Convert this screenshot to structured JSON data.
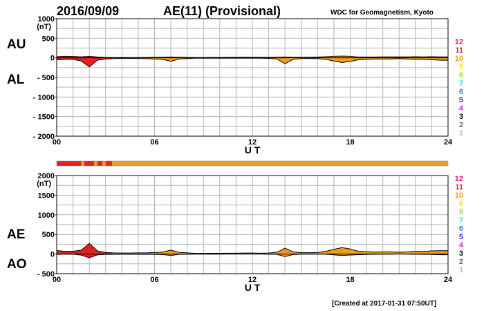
{
  "header": {
    "date": "2016/09/09",
    "title": "AE(11) (Provisional)",
    "source": "WDC for Geomagnetism, Kyoto"
  },
  "footer": {
    "created": "[Created at 2017-01-31 07:50UT]"
  },
  "station_count_legend": {
    "labels": [
      "12",
      "11",
      "10",
      "9",
      "8",
      "7",
      "6",
      "5",
      "4",
      "3",
      "2",
      "1"
    ],
    "colors": [
      "#e8177f",
      "#e5201e",
      "#f0a21d",
      "#f2ea1c",
      "#a2d92b",
      "#35d4dc",
      "#2a8de0",
      "#2b2bc9",
      "#c42ed1",
      "#111111",
      "#666666",
      "#bfbfbf"
    ]
  },
  "chart_data": [
    {
      "type": "area",
      "panel": "top",
      "y_unit_label": "(nT)",
      "series_labels": [
        "AU",
        "AL"
      ],
      "xlabel": "U T",
      "x_ticks": [
        "00",
        "06",
        "12",
        "18",
        "24"
      ],
      "y_ticks": [
        "1000",
        "500",
        "0",
        "- 500",
        "- 1000",
        "- 1500",
        "- 2000"
      ],
      "xlim": [
        0,
        24
      ],
      "ylim": [
        -2000,
        1000
      ],
      "series": [
        {
          "name": "AU",
          "x": [
            0,
            0.5,
            1,
            1.5,
            2,
            2.5,
            3,
            3.5,
            4,
            4.5,
            5,
            5.5,
            6,
            6.5,
            7,
            7.5,
            8,
            8.5,
            9,
            9.5,
            10,
            10.5,
            11,
            11.5,
            12,
            12.5,
            13,
            13.5,
            14,
            14.5,
            15,
            15.5,
            16,
            16.5,
            17,
            17.5,
            18,
            18.5,
            19,
            19.5,
            20,
            20.5,
            21,
            21.5,
            22,
            22.5,
            23,
            23.5,
            24
          ],
          "values": [
            30,
            40,
            35,
            25,
            40,
            20,
            10,
            8,
            8,
            8,
            8,
            10,
            12,
            15,
            20,
            15,
            10,
            8,
            8,
            10,
            10,
            12,
            12,
            15,
            15,
            12,
            12,
            15,
            20,
            15,
            15,
            15,
            20,
            30,
            40,
            45,
            40,
            20,
            20,
            20,
            25,
            25,
            25,
            25,
            30,
            25,
            30,
            25,
            25
          ]
        },
        {
          "name": "AL",
          "x": [
            0,
            0.5,
            1,
            1.5,
            2,
            2.5,
            3,
            3.5,
            4,
            4.5,
            5,
            5.5,
            6,
            6.5,
            7,
            7.5,
            8,
            8.5,
            9,
            9.5,
            10,
            10.5,
            11,
            11.5,
            12,
            12.5,
            13,
            13.5,
            14,
            14.5,
            15,
            15.5,
            16,
            16.5,
            17,
            17.5,
            18,
            18.5,
            19,
            19.5,
            20,
            20.5,
            21,
            21.5,
            22,
            22.5,
            23,
            23.5,
            24
          ],
          "values": [
            -50,
            -40,
            -40,
            -80,
            -230,
            -60,
            -30,
            -20,
            -15,
            -15,
            -20,
            -20,
            -30,
            -40,
            -90,
            -30,
            -20,
            -10,
            -10,
            -10,
            -10,
            -10,
            -10,
            -10,
            -10,
            -10,
            -15,
            -30,
            -150,
            -40,
            -20,
            -20,
            -20,
            -40,
            -80,
            -120,
            -90,
            -50,
            -40,
            -30,
            -30,
            -30,
            -20,
            -30,
            -40,
            -40,
            -50,
            -60,
            -60
          ]
        }
      ]
    },
    {
      "type": "area",
      "panel": "bottom",
      "y_unit_label": "(nT)",
      "series_labels": [
        "AE",
        "AO"
      ],
      "xlabel": "U T",
      "x_ticks": [
        "00",
        "06",
        "12",
        "18",
        "24"
      ],
      "y_ticks": [
        "2000",
        "1500",
        "1000",
        "500",
        "0",
        "- 500"
      ],
      "xlim": [
        0,
        24
      ],
      "ylim": [
        -500,
        2000
      ],
      "series": [
        {
          "name": "AE",
          "x": [
            0,
            0.5,
            1,
            1.5,
            2,
            2.5,
            3,
            3.5,
            4,
            4.5,
            5,
            5.5,
            6,
            6.5,
            7,
            7.5,
            8,
            8.5,
            9,
            9.5,
            10,
            10.5,
            11,
            11.5,
            12,
            12.5,
            13,
            13.5,
            14,
            14.5,
            15,
            15.5,
            16,
            16.5,
            17,
            17.5,
            18,
            18.5,
            19,
            19.5,
            20,
            20.5,
            21,
            21.5,
            22,
            22.5,
            23,
            23.5,
            24
          ],
          "values": [
            90,
            70,
            70,
            100,
            270,
            80,
            40,
            30,
            25,
            25,
            30,
            30,
            40,
            50,
            100,
            45,
            30,
            18,
            18,
            20,
            20,
            22,
            22,
            25,
            25,
            22,
            25,
            45,
            150,
            55,
            35,
            35,
            40,
            70,
            120,
            165,
            130,
            70,
            60,
            50,
            55,
            55,
            45,
            55,
            70,
            65,
            80,
            85,
            85
          ]
        },
        {
          "name": "AO",
          "x": [
            0,
            0.5,
            1,
            1.5,
            2,
            2.5,
            3,
            3.5,
            4,
            4.5,
            5,
            5.5,
            6,
            6.5,
            7,
            7.5,
            8,
            8.5,
            9,
            9.5,
            10,
            10.5,
            11,
            11.5,
            12,
            12.5,
            13,
            13.5,
            14,
            14.5,
            15,
            15.5,
            16,
            16.5,
            17,
            17.5,
            18,
            18.5,
            19,
            19.5,
            20,
            20.5,
            21,
            21.5,
            22,
            22.5,
            23,
            23.5,
            24
          ],
          "values": [
            -10,
            0,
            -3,
            -28,
            -95,
            -20,
            -10,
            -6,
            -4,
            -4,
            -6,
            -5,
            -9,
            -13,
            -35,
            -8,
            -5,
            -1,
            -1,
            0,
            0,
            1,
            1,
            3,
            3,
            1,
            -2,
            -8,
            -65,
            -13,
            -3,
            -3,
            0,
            -5,
            -20,
            -38,
            -25,
            -15,
            -10,
            -5,
            -3,
            -3,
            3,
            -3,
            -5,
            -8,
            -10,
            -18,
            -18
          ]
        }
      ]
    }
  ],
  "station_bar": {
    "segments": [
      {
        "from": 0,
        "to": 1.5,
        "stations": 11
      },
      {
        "from": 1.5,
        "to": 1.7,
        "stations": 10
      },
      {
        "from": 1.7,
        "to": 2.3,
        "stations": 11
      },
      {
        "from": 2.3,
        "to": 2.5,
        "stations": 10
      },
      {
        "from": 2.5,
        "to": 2.8,
        "stations": 11
      },
      {
        "from": 2.8,
        "to": 3.0,
        "stations": 10
      },
      {
        "from": 3.0,
        "to": 3.4,
        "stations": 11
      },
      {
        "from": 3.4,
        "to": 24,
        "stations": 10
      }
    ]
  },
  "colors": {
    "fill_12": "#e5201e",
    "fill_11": "#e5201e",
    "fill_10": "#f39c1c",
    "grid": "#b3b3b3",
    "line": "#000000"
  }
}
